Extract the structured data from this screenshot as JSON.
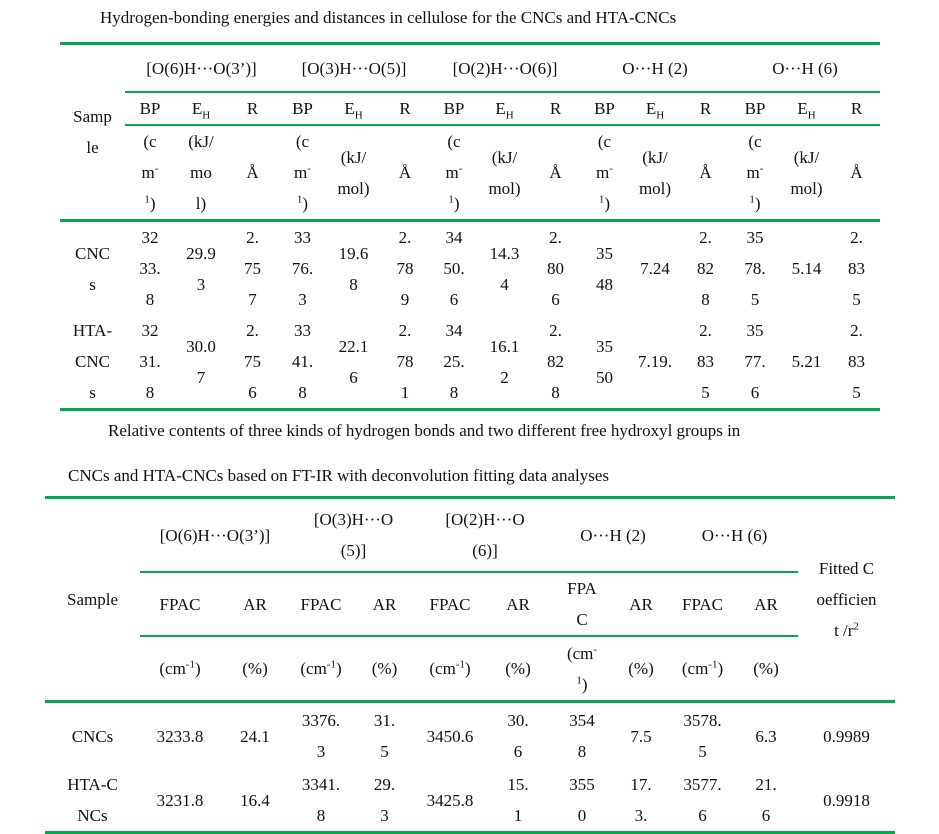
{
  "caption1": "Hydrogen-bonding energies and distances in cellulose for the CNCs and HTA-CNCs",
  "table1": {
    "sample_header": "Sample",
    "groups": [
      "[O(6)H···O(3’)]",
      "[O(3)H···O(5)]",
      "[O(2)H···O(6)]",
      "O···H (2)",
      "O···H (6)"
    ],
    "sub": {
      "bp": "BP",
      "eh": "E",
      "eh_sub": "H",
      "r": "R"
    },
    "units": {
      "bp_pre": "(cm",
      "bp_sup": "-1",
      "bp_post": ")",
      "eh": "(kJ/mol)",
      "r": "Å"
    },
    "rows": [
      {
        "sample": "CNCs",
        "values": [
          "3233.8",
          "29.93",
          "2.757",
          "3376.3",
          "19.68",
          "2.789",
          "3450.6",
          "14.34",
          "2.806",
          "3548",
          "7.24",
          "2.828",
          "3578.5",
          "5.14",
          "2.835"
        ]
      },
      {
        "sample": "HTA-CNCs",
        "values": [
          "3231.8",
          "30.07",
          "2.756",
          "3341.8",
          "22.16",
          "2.781",
          "3425.8",
          "16.12",
          "2.828",
          "3550",
          "7.19.",
          "2.835",
          "3577.6",
          "5.21",
          "2.835"
        ]
      }
    ]
  },
  "caption2_line1": "Relative contents of three kinds of hydrogen bonds and two different free hydroxyl groups in",
  "caption2_line2": "CNCs and HTA-CNCs based on FT-IR with deconvolution fitting data analyses",
  "table2": {
    "sample_header": "Sample",
    "groups": [
      "[O(6)H···O(3’)]",
      "[O(3)H···O(5)]",
      "[O(2)H···O(6)]",
      "O···H (2)",
      "O···H (6)"
    ],
    "sub": {
      "fpac": "FPAC",
      "ar": "AR"
    },
    "units": {
      "fpac_pre": "(cm",
      "fpac_sup": "-1",
      "fpac_post": ")",
      "ar": "(%)"
    },
    "fitted_header": "Fitted Coefficient /r",
    "fitted_sup": "2",
    "rows": [
      {
        "sample": "CNCs",
        "values": [
          "3233.8",
          "24.1",
          "3376.3",
          "31.5",
          "3450.6",
          "30.6",
          "3548",
          "7.5",
          "3578.5",
          "6.3"
        ],
        "fitted": "0.9989"
      },
      {
        "sample": "HTA-CNCs",
        "values": [
          "3231.8",
          "16.4",
          "3341.8",
          "29.3",
          "3425.8",
          "15.1",
          "3550",
          "17.3.",
          "3577.6",
          "21.6"
        ],
        "fitted": "0.9918"
      }
    ]
  },
  "colors": {
    "rule": "#00a850"
  }
}
